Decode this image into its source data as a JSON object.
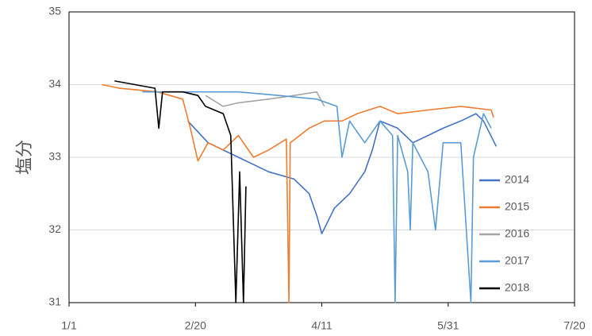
{
  "chart_data": {
    "type": "line",
    "y_label": "塩分",
    "xlim": [
      0,
      200
    ],
    "xticks": [
      {
        "value": 0,
        "label": "1/1"
      },
      {
        "value": 50,
        "label": "2/20"
      },
      {
        "value": 100,
        "label": "4/11"
      },
      {
        "value": 150,
        "label": "5/31"
      },
      {
        "value": 200,
        "label": "7/20"
      }
    ],
    "ylim": [
      31,
      35
    ],
    "yticks": [
      31,
      32,
      33,
      34,
      35
    ],
    "grid": true,
    "legend": "right",
    "series": [
      {
        "name": "2014",
        "color": "#4472c4",
        "x": [
          47,
          55,
          67,
          79,
          89,
          95,
          98,
          100,
          105,
          111,
          117,
          120,
          123,
          130,
          136,
          142,
          148,
          155,
          161,
          164,
          169
        ],
        "values": [
          33.5,
          33.2,
          33.0,
          32.8,
          32.7,
          32.5,
          32.2,
          31.95,
          32.3,
          32.5,
          32.8,
          33.1,
          33.5,
          33.4,
          33.2,
          33.3,
          33.4,
          33.5,
          33.6,
          33.5,
          33.15
        ]
      },
      {
        "name": "2015",
        "color": "#ed7d31",
        "x": [
          13,
          20,
          35,
          45,
          48,
          51,
          55,
          61,
          67,
          73,
          79,
          86,
          87,
          87.5,
          95,
          101,
          108,
          114,
          123,
          130,
          142,
          155,
          167,
          168
        ],
        "values": [
          34.0,
          33.95,
          33.9,
          33.8,
          33.4,
          32.95,
          33.2,
          33.1,
          33.3,
          33.0,
          33.1,
          33.25,
          31.0,
          33.2,
          33.4,
          33.5,
          33.5,
          33.6,
          33.7,
          33.6,
          33.65,
          33.7,
          33.65,
          33.55
        ]
      },
      {
        "name": "2016",
        "color": "#a5a5a5",
        "x": [
          54,
          61,
          67,
          79,
          89,
          98,
          101
        ],
        "values": [
          33.85,
          33.7,
          33.75,
          33.8,
          33.85,
          33.9,
          33.7
        ]
      },
      {
        "name": "2017",
        "color": "#5b9bd5",
        "x": [
          29,
          35,
          51,
          67,
          83,
          98,
          106,
          108,
          111,
          117,
          123,
          128,
          129,
          130,
          134,
          135,
          136,
          142,
          145,
          148,
          155,
          159,
          160,
          164,
          167
        ],
        "values": [
          33.9,
          33.9,
          33.9,
          33.9,
          33.85,
          33.8,
          33.7,
          33.0,
          33.5,
          33.2,
          33.5,
          33.3,
          31.0,
          33.3,
          32.8,
          32.0,
          33.2,
          32.8,
          32.0,
          33.2,
          33.2,
          31.0,
          33.0,
          33.6,
          33.4
        ]
      },
      {
        "name": "2018",
        "color": "#000000",
        "x": [
          18,
          26,
          34,
          35.5,
          37,
          45,
          51,
          54,
          61,
          64,
          66,
          67.5,
          69,
          70
        ],
        "values": [
          34.05,
          34.0,
          33.95,
          33.4,
          33.9,
          33.9,
          33.85,
          33.7,
          33.6,
          33.3,
          31.0,
          32.8,
          31.0,
          32.6
        ]
      }
    ]
  }
}
